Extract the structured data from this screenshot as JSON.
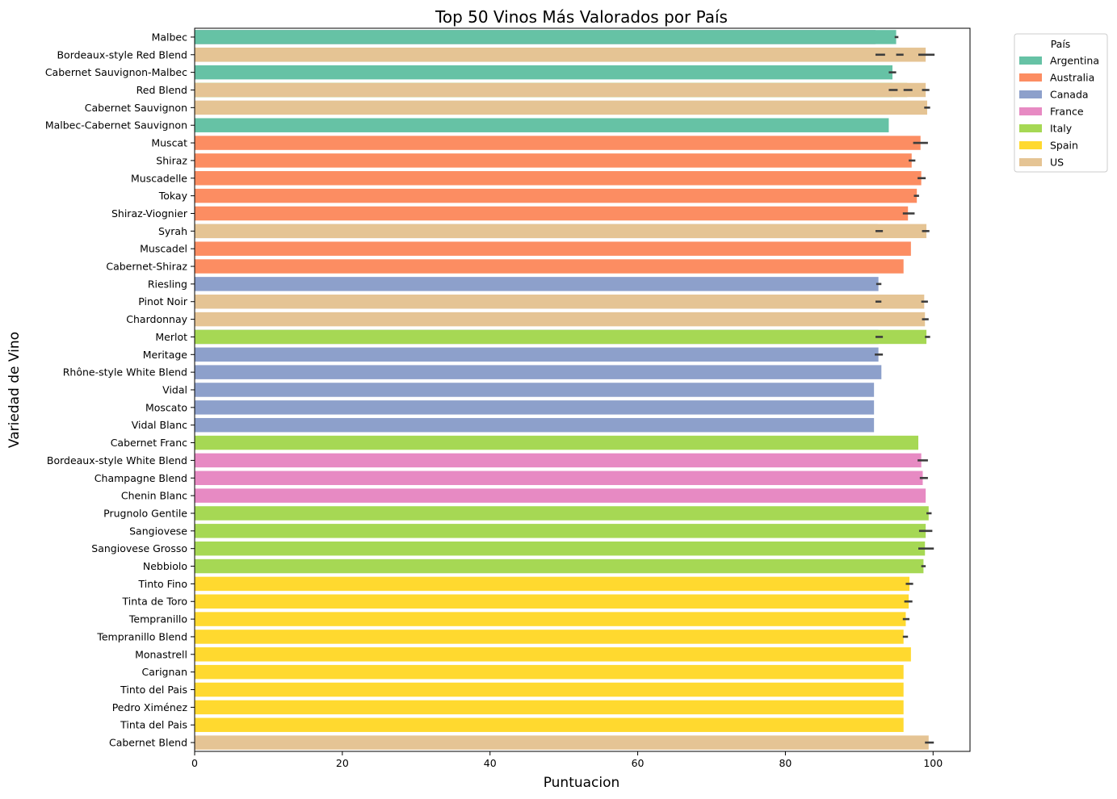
{
  "chart_data": {
    "type": "bar",
    "orientation": "horizontal",
    "title": "Top 50 Vinos Más Valorados por País",
    "xlabel": "Puntuacion",
    "ylabel": "Variedad de Vino",
    "xlim": [
      0,
      105
    ],
    "xticks": [
      0,
      20,
      40,
      60,
      80,
      100
    ],
    "grid": false,
    "legend": {
      "title": "País",
      "placement": "outside-top-right"
    },
    "countries": [
      {
        "name": "Argentina",
        "color": "#66c2a5"
      },
      {
        "name": "Australia",
        "color": "#fc8d62"
      },
      {
        "name": "Canada",
        "color": "#8da0cb"
      },
      {
        "name": "France",
        "color": "#e78ac3"
      },
      {
        "name": "Italy",
        "color": "#a6d854"
      },
      {
        "name": "Spain",
        "color": "#ffd92f"
      },
      {
        "name": "US",
        "color": "#e5c494"
      }
    ],
    "categories": [
      "Malbec",
      "Bordeaux-style Red Blend",
      "Cabernet Sauvignon-Malbec",
      "Red Blend",
      "Cabernet Sauvignon",
      "Malbec-Cabernet Sauvignon",
      "Muscat",
      "Shiraz",
      "Muscadelle",
      "Tokay",
      "Shiraz-Viognier",
      "Syrah",
      "Muscadel",
      "Cabernet-Shiraz",
      "Riesling",
      "Pinot Noir",
      "Chardonnay",
      "Merlot",
      "Meritage",
      "Rhône-style White Blend",
      "Vidal",
      "Moscato",
      "Vidal Blanc",
      "Cabernet Franc",
      "Bordeaux-style White Blend",
      "Champagne Blend",
      "Chenin Blanc",
      "Prugnolo Gentile",
      "Sangiovese",
      "Sangiovese Grosso",
      "Nebbiolo",
      "Tinto Fino",
      "Tinta de Toro",
      "Tempranillo",
      "Tempranillo Blend",
      "Monastrell",
      "Carignan",
      "Tinto del Pais",
      "Pedro Ximénez",
      "Tinta del Pais",
      "Cabernet Blend"
    ],
    "bars": [
      {
        "category": "Malbec",
        "country": "US",
        "value": 92.2,
        "ci": [
          92.2,
          92.2
        ]
      },
      {
        "category": "Malbec",
        "country": "Canada",
        "value": 92.2,
        "ci": [
          92.2,
          92.2
        ]
      },
      {
        "category": "Malbec",
        "country": "Argentina",
        "value": 95.0,
        "ci": [
          94.8,
          95.3
        ]
      },
      {
        "category": "Bordeaux-style Red Blend",
        "country": "Canada",
        "value": 92.8,
        "ci": [
          92.2,
          93.5
        ]
      },
      {
        "category": "Bordeaux-style Red Blend",
        "country": "Argentina",
        "value": 95.5,
        "ci": [
          95.0,
          96.0
        ]
      },
      {
        "category": "Bordeaux-style Red Blend",
        "country": "US",
        "value": 99.0,
        "ci": [
          98.0,
          100.2
        ]
      },
      {
        "category": "Cabernet Sauvignon-Malbec",
        "country": "Argentina",
        "value": 94.5,
        "ci": [
          94.0,
          95.0
        ]
      },
      {
        "category": "Red Blend",
        "country": "Argentina",
        "value": 94.5,
        "ci": [
          94.0,
          95.2
        ]
      },
      {
        "category": "Red Blend",
        "country": "Italy",
        "value": 96.5,
        "ci": [
          96.0,
          97.2
        ]
      },
      {
        "category": "Red Blend",
        "country": "US",
        "value": 99.0,
        "ci": [
          98.5,
          99.5
        ]
      },
      {
        "category": "Cabernet Sauvignon",
        "country": "US",
        "value": 99.2,
        "ci": [
          98.8,
          99.6
        ]
      },
      {
        "category": "Malbec-Cabernet Sauvignon",
        "country": "Argentina",
        "value": 94.0,
        "ci": [
          94.0,
          94.0
        ]
      },
      {
        "category": "Muscat",
        "country": "Australia",
        "value": 98.3,
        "ci": [
          97.3,
          99.3
        ]
      },
      {
        "category": "Shiraz",
        "country": "Australia",
        "value": 97.1,
        "ci": [
          96.7,
          97.6
        ]
      },
      {
        "category": "Muscadelle",
        "country": "Australia",
        "value": 98.4,
        "ci": [
          97.9,
          99.0
        ]
      },
      {
        "category": "Tokay",
        "country": "Australia",
        "value": 97.8,
        "ci": [
          97.4,
          98.1
        ]
      },
      {
        "category": "Shiraz-Viognier",
        "country": "Australia",
        "value": 96.6,
        "ci": [
          95.9,
          97.5
        ]
      },
      {
        "category": "Syrah",
        "country": "Canada",
        "value": 92.5,
        "ci": [
          92.2,
          93.2
        ]
      },
      {
        "category": "Syrah",
        "country": "US",
        "value": 99.1,
        "ci": [
          98.5,
          99.5
        ]
      },
      {
        "category": "Muscadel",
        "country": "Australia",
        "value": 97.0,
        "ci": [
          97.0,
          97.0
        ]
      },
      {
        "category": "Cabernet-Shiraz",
        "country": "Australia",
        "value": 96.0,
        "ci": [
          96.0,
          96.0
        ]
      },
      {
        "category": "Riesling",
        "country": "Canada",
        "value": 92.6,
        "ci": [
          92.3,
          93.0
        ]
      },
      {
        "category": "Pinot Noir",
        "country": "Canada",
        "value": 92.5,
        "ci": [
          92.2,
          93.0
        ]
      },
      {
        "category": "Pinot Noir",
        "country": "US",
        "value": 98.8,
        "ci": [
          98.4,
          99.3
        ]
      },
      {
        "category": "Chardonnay",
        "country": "US",
        "value": 98.9,
        "ci": [
          98.5,
          99.4
        ]
      },
      {
        "category": "Merlot",
        "country": "Canada",
        "value": 92.6,
        "ci": [
          92.2,
          93.2
        ]
      },
      {
        "category": "Merlot",
        "country": "Italy",
        "value": 99.1,
        "ci": [
          98.9,
          99.6
        ]
      },
      {
        "category": "Meritage",
        "country": "Canada",
        "value": 92.6,
        "ci": [
          92.1,
          93.2
        ]
      },
      {
        "category": "Rhône-style White Blend",
        "country": "Canada",
        "value": 93.0,
        "ci": [
          93.0,
          93.0
        ]
      },
      {
        "category": "Vidal",
        "country": "Canada",
        "value": 92.0,
        "ci": [
          92.0,
          92.0
        ]
      },
      {
        "category": "Moscato",
        "country": "Canada",
        "value": 92.0,
        "ci": [
          92.0,
          92.0
        ]
      },
      {
        "category": "Vidal Blanc",
        "country": "Canada",
        "value": 92.0,
        "ci": [
          92.0,
          92.0
        ]
      },
      {
        "category": "Cabernet Franc",
        "country": "Italy",
        "value": 98.0,
        "ci": [
          98.0,
          98.0
        ]
      },
      {
        "category": "Bordeaux-style White Blend",
        "country": "France",
        "value": 98.4,
        "ci": [
          97.9,
          99.3
        ]
      },
      {
        "category": "Champagne Blend",
        "country": "France",
        "value": 98.6,
        "ci": [
          98.2,
          99.3
        ]
      },
      {
        "category": "Chenin Blanc",
        "country": "France",
        "value": 99.0,
        "ci": [
          99.0,
          99.0
        ]
      },
      {
        "category": "Prugnolo Gentile",
        "country": "Italy",
        "value": 99.4,
        "ci": [
          99.1,
          99.8
        ]
      },
      {
        "category": "Sangiovese",
        "country": "Italy",
        "value": 99.0,
        "ci": [
          98.1,
          99.9
        ]
      },
      {
        "category": "Sangiovese Grosso",
        "country": "Italy",
        "value": 98.9,
        "ci": [
          98.0,
          100.1
        ]
      },
      {
        "category": "Nebbiolo",
        "country": "Italy",
        "value": 98.7,
        "ci": [
          98.4,
          99.0
        ]
      },
      {
        "category": "Tinto Fino",
        "country": "Spain",
        "value": 96.8,
        "ci": [
          96.3,
          97.3
        ]
      },
      {
        "category": "Tinta de Toro",
        "country": "Spain",
        "value": 96.7,
        "ci": [
          96.1,
          97.2
        ]
      },
      {
        "category": "Tempranillo",
        "country": "Spain",
        "value": 96.3,
        "ci": [
          95.9,
          96.8
        ]
      },
      {
        "category": "Tempranillo Blend",
        "country": "Spain",
        "value": 96.0,
        "ci": [
          95.9,
          96.6
        ]
      },
      {
        "category": "Monastrell",
        "country": "Spain",
        "value": 97.0,
        "ci": [
          97.0,
          97.0
        ]
      },
      {
        "category": "Carignan",
        "country": "Spain",
        "value": 96.0,
        "ci": [
          96.0,
          96.0
        ]
      },
      {
        "category": "Tinto del Pais",
        "country": "Spain",
        "value": 96.0,
        "ci": [
          96.0,
          96.0
        ]
      },
      {
        "category": "Pedro Ximénez",
        "country": "Spain",
        "value": 96.0,
        "ci": [
          96.0,
          96.0
        ]
      },
      {
        "category": "Tinta del Pais",
        "country": "Spain",
        "value": 96.0,
        "ci": [
          96.0,
          96.0
        ]
      },
      {
        "category": "Cabernet Blend",
        "country": "US",
        "value": 99.4,
        "ci": [
          98.9,
          100.1
        ]
      }
    ]
  }
}
